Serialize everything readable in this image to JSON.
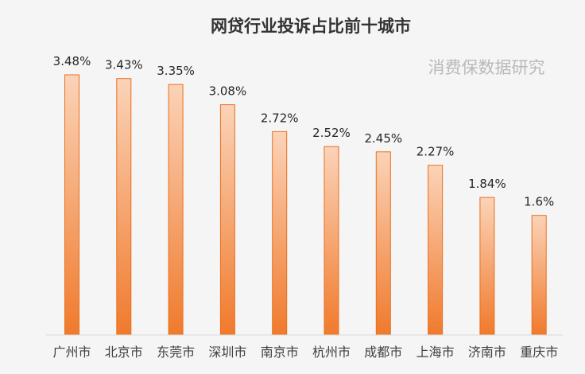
{
  "chart_data": {
    "type": "bar",
    "title": "网贷行业投诉占比前十城市",
    "categories": [
      "广州市",
      "北京市",
      "东莞市",
      "深圳市",
      "南京市",
      "杭州市",
      "成都市",
      "上海市",
      "济南市",
      "重庆市"
    ],
    "values": [
      3.48,
      3.43,
      3.35,
      3.08,
      2.72,
      2.52,
      2.45,
      2.27,
      1.84,
      1.6
    ],
    "data_labels": [
      "3.48%",
      "3.43%",
      "3.35%",
      "3.08%",
      "2.72%",
      "2.52%",
      "2.45%",
      "2.27%",
      "1.84%",
      "1.6%"
    ],
    "ylim": [
      0,
      3.5
    ],
    "grid": false,
    "legend": "none",
    "bar_color_top": "#fbd3b8",
    "bar_color_bottom": "#f07a2c",
    "bar_border": "#e8701f"
  },
  "watermark": "消费保数据研究"
}
